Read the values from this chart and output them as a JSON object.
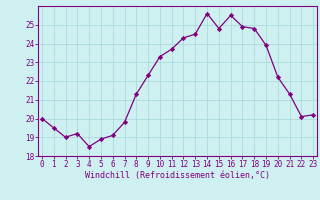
{
  "x": [
    0,
    1,
    2,
    3,
    4,
    5,
    6,
    7,
    8,
    9,
    10,
    11,
    12,
    13,
    14,
    15,
    16,
    17,
    18,
    19,
    20,
    21,
    22,
    23
  ],
  "y": [
    20.0,
    19.5,
    19.0,
    19.2,
    18.5,
    18.9,
    19.1,
    19.8,
    21.3,
    22.3,
    23.3,
    23.7,
    24.3,
    24.5,
    25.6,
    24.8,
    25.5,
    24.9,
    24.8,
    23.9,
    22.2,
    21.3,
    20.1,
    20.2
  ],
  "xlim": [
    -0.3,
    23.3
  ],
  "ylim": [
    18,
    26
  ],
  "yticks": [
    18,
    19,
    20,
    21,
    22,
    23,
    24,
    25
  ],
  "xticks": [
    0,
    1,
    2,
    3,
    4,
    5,
    6,
    7,
    8,
    9,
    10,
    11,
    12,
    13,
    14,
    15,
    16,
    17,
    18,
    19,
    20,
    21,
    22,
    23
  ],
  "xlabel": "Windchill (Refroidissement éolien,°C)",
  "line_color": "#800080",
  "marker": "D",
  "marker_size": 2.2,
  "bg_color": "#cff0f0",
  "grid_color": "#aadada",
  "font_family": "monospace",
  "tick_fontsize": 5.5,
  "xlabel_fontsize": 6.0
}
